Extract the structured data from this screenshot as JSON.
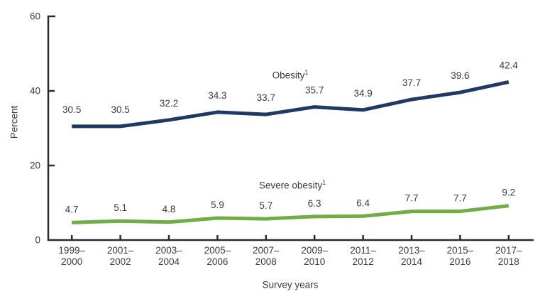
{
  "chart_data": {
    "type": "line",
    "title": "",
    "xlabel": "Survey years",
    "ylabel": "Percent",
    "ylim": [
      0,
      60
    ],
    "yticks": [
      0,
      20,
      40,
      60
    ],
    "grid": false,
    "legend_position": "inline-labels",
    "categories": [
      "1999–2000",
      "2001–2002",
      "2003–2004",
      "2005–2006",
      "2007–2008",
      "2009–2010",
      "2011–2012",
      "2013–2014",
      "2015–2016",
      "2017–2018"
    ],
    "series": [
      {
        "name": "Obesity",
        "marker": "1",
        "color": "#1f3864",
        "values": [
          30.5,
          30.5,
          32.2,
          34.3,
          33.7,
          35.7,
          34.9,
          37.7,
          39.6,
          42.4
        ]
      },
      {
        "name": "Severe obesity",
        "marker": "1",
        "color": "#70ad47",
        "values": [
          4.7,
          5.1,
          4.8,
          5.9,
          5.7,
          6.3,
          6.4,
          7.7,
          7.7,
          9.2
        ]
      }
    ],
    "colors": {
      "axis": "#2b2b2b",
      "text": "#3a3a3a"
    }
  }
}
